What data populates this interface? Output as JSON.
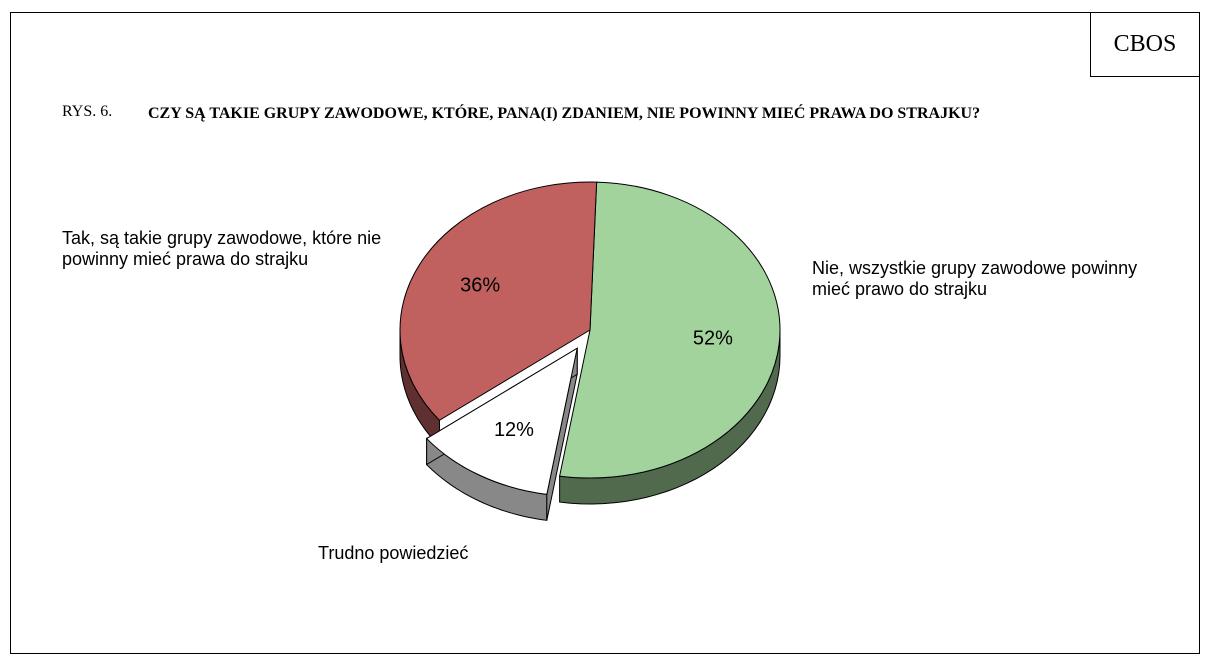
{
  "header": {
    "source": "CBOS",
    "figure_number": "RYS. 6."
  },
  "chart_data": {
    "type": "pie",
    "title": "CZY SĄ TAKIE GRUPY ZAWODOWE, KTÓRE, PANA(I) ZDANIEM, NIE POWINNY MIEĆ PRAWA DO STRAJKU?",
    "categories": [
      "Nie, wszystkie grupy zawodowe powinny mieć prawo do strajku",
      "Trudno powiedzieć",
      "Tak, są takie grupy zawodowe, które nie powinny mieć prawa do strajku"
    ],
    "values": [
      52,
      12,
      36
    ],
    "value_labels": [
      "52%",
      "12%",
      "36%"
    ],
    "colors": [
      "#a2d39c",
      "#ffffff",
      "#c0605f"
    ],
    "exploded": [
      false,
      true,
      false
    ]
  }
}
